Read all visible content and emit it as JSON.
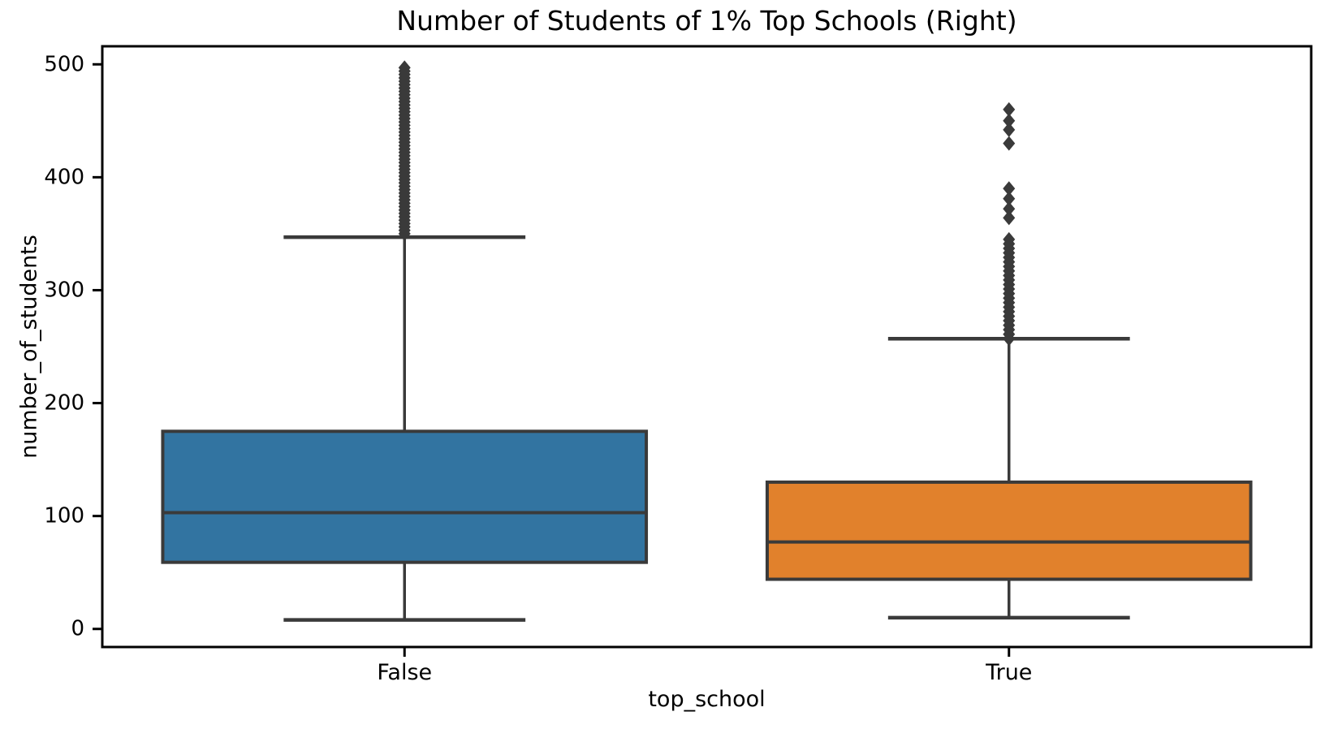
{
  "chart_data": {
    "type": "box",
    "title": "Number of Students of 1% Top Schools (Right)",
    "xlabel": "top_school",
    "ylabel": "number_of_students",
    "categories": [
      "False",
      "True"
    ],
    "yticks": [
      0,
      100,
      200,
      300,
      400,
      500
    ],
    "ylim": [
      -16,
      516
    ],
    "grid": false,
    "legend": "none",
    "series": [
      {
        "category": "False",
        "box_color": "#3274a1",
        "q1": 59,
        "median": 103,
        "q3": 175,
        "whisker_low": 8,
        "whisker_high": 347,
        "outliers": [
          350,
          353,
          356,
          359,
          362,
          365,
          368,
          371,
          374,
          377,
          380,
          383,
          386,
          389,
          392,
          395,
          398,
          401,
          404,
          407,
          410,
          413,
          416,
          419,
          422,
          425,
          428,
          431,
          434,
          437,
          440,
          443,
          446,
          449,
          452,
          455,
          458,
          461,
          464,
          467,
          470,
          473,
          476,
          479,
          482,
          485,
          488,
          491,
          494,
          497
        ]
      },
      {
        "category": "True",
        "box_color": "#e1812c",
        "q1": 44,
        "median": 77,
        "q3": 130,
        "whisker_low": 10,
        "whisker_high": 257,
        "outliers": [
          257,
          261,
          265,
          269,
          273,
          277,
          281,
          285,
          289,
          293,
          297,
          301,
          305,
          309,
          313,
          317,
          321,
          325,
          329,
          333,
          337,
          341,
          345,
          364,
          372,
          381,
          390,
          430,
          442,
          450,
          460
        ]
      }
    ],
    "colors": {
      "line": "#3a3a3a",
      "flier": "#3a3a3a",
      "axis": "#000000",
      "text": "#000000",
      "background": "#ffffff"
    }
  }
}
